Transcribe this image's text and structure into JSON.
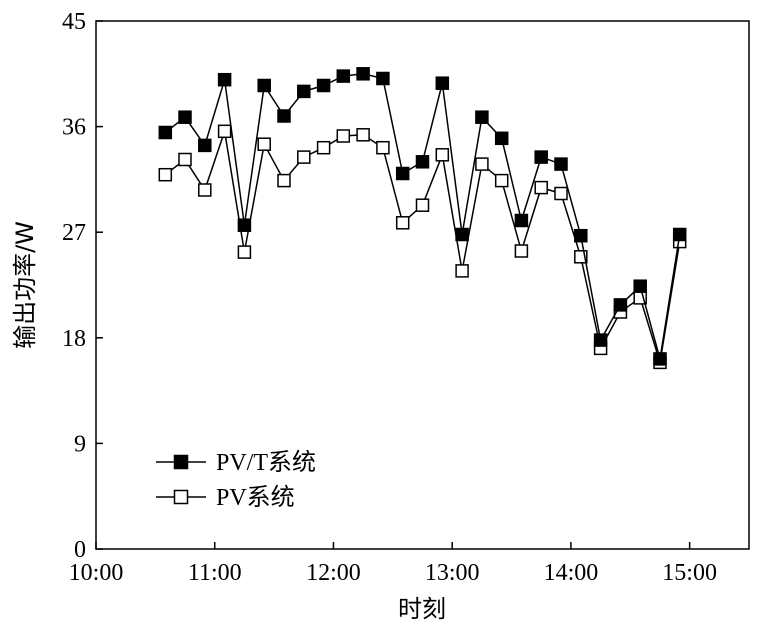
{
  "chart_data": {
    "type": "line",
    "xlabel": "时刻",
    "ylabel": "输出功率/W",
    "xlim": [
      "10:00",
      "15:30"
    ],
    "ylim": [
      0,
      45
    ],
    "xticks": [
      "10:00",
      "11:00",
      "12:00",
      "13:00",
      "14:00",
      "15:00"
    ],
    "yticks": [
      0,
      9,
      18,
      27,
      36,
      45
    ],
    "grid": false,
    "legend_position": "bottom-left",
    "x": [
      "10:35",
      "10:45",
      "10:55",
      "11:05",
      "11:15",
      "11:25",
      "11:35",
      "11:45",
      "11:55",
      "12:05",
      "12:15",
      "12:25",
      "12:35",
      "12:45",
      "12:55",
      "13:05",
      "13:15",
      "13:25",
      "13:35",
      "13:45",
      "13:55",
      "14:05",
      "14:15",
      "14:25",
      "14:35",
      "14:45",
      "14:55"
    ],
    "series": [
      {
        "name": "PV/T系统",
        "marker": "filled-square",
        "color": "#000000",
        "values": [
          35.5,
          36.8,
          34.4,
          40.0,
          27.6,
          39.5,
          36.9,
          39.0,
          39.5,
          40.3,
          40.5,
          40.1,
          32.0,
          33.0,
          39.7,
          26.8,
          36.8,
          35.0,
          28.0,
          33.4,
          32.8,
          26.7,
          17.8,
          20.8,
          22.4,
          16.2,
          26.8
        ]
      },
      {
        "name": "PV系统",
        "marker": "open-square",
        "color": "#000000",
        "values": [
          31.9,
          33.2,
          30.6,
          35.6,
          25.3,
          34.5,
          31.4,
          33.4,
          34.2,
          35.2,
          35.3,
          34.2,
          27.8,
          29.3,
          33.6,
          23.7,
          32.8,
          31.4,
          25.4,
          30.8,
          30.3,
          24.9,
          17.1,
          20.2,
          21.4,
          15.9,
          26.2
        ]
      }
    ]
  }
}
